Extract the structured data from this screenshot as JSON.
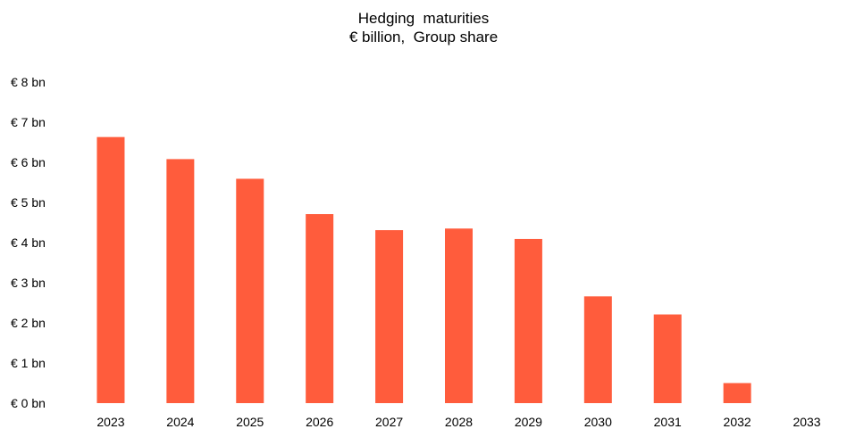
{
  "chart_data": {
    "type": "bar",
    "title": "Hedging  maturities",
    "subtitle": "€ billion,  Group share",
    "categories": [
      "2023",
      "2024",
      "2025",
      "2026",
      "2027",
      "2028",
      "2029",
      "2030",
      "2031",
      "2032",
      "2033"
    ],
    "values": [
      6.63,
      6.08,
      5.59,
      4.71,
      4.31,
      4.35,
      4.09,
      2.66,
      2.21,
      0.5,
      0
    ],
    "y_ticks": [
      "€ 0 bn",
      "€ 1 bn",
      "€ 2 bn",
      "€ 3 bn",
      "€ 4 bn",
      "€ 5 bn",
      "€ 6 bn",
      "€ 7 bn",
      "€ 8 bn"
    ],
    "xlabel": "",
    "ylabel": "",
    "ylim": [
      0,
      8
    ],
    "grid": false,
    "legend": "none",
    "bar_color": "#ff5c3c"
  }
}
